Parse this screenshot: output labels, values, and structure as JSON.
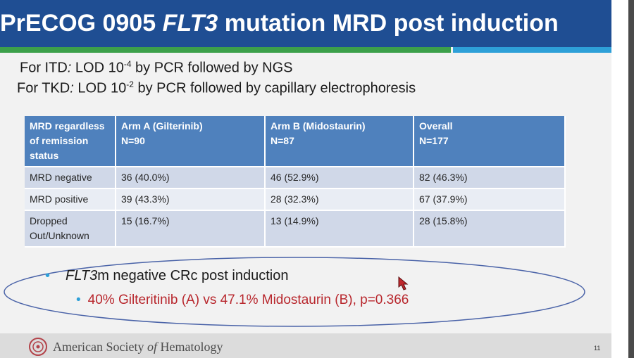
{
  "slide": {
    "title_prefix": "PrECOG 0905",
    "title_italic": "FLT3",
    "title_suffix": "mutation MRD post induction",
    "lod_itd": {
      "label": "For ITD",
      "colon": ":",
      "text": " LOD 10",
      "exponent": "-4",
      "rest": " by PCR  followed by NGS"
    },
    "lod_tkd": {
      "label": "For TKD",
      "colon": ":",
      "text": " LOD 10",
      "exponent": "-2",
      "rest": " by PCR  followed by capillary electrophoresis"
    },
    "table": {
      "headers": [
        {
          "line1": "MRD regardless",
          "line2": "of remission",
          "line3": "status"
        },
        {
          "line1": "Arm A (Gilterinib)",
          "line2": "N=90"
        },
        {
          "line1": "Arm B (Midostaurin)",
          "line2": "N=87"
        },
        {
          "line1": "Overall",
          "line2": "N=177"
        }
      ],
      "rows": [
        {
          "label_line1": "MRD negative",
          "label_line2": "",
          "arm_a": "36 (40.0%)",
          "arm_b": "46 (52.9%)",
          "overall": "82 (46.3%)"
        },
        {
          "label_line1": "MRD positive",
          "label_line2": "",
          "arm_a": "39 (43.3%)",
          "arm_b": "28 (32.3%)",
          "overall": "67 (37.9%)"
        },
        {
          "label_line1": "Dropped",
          "label_line2": "Out/Unknown",
          "arm_a": "15 (16.7%)",
          "arm_b": "13 (14.9%)",
          "overall": "28 (15.8%)"
        }
      ]
    },
    "bullets": {
      "b1_italic": "FLT3",
      "b1_rest": "m negative CRc post induction",
      "b2": "40% Gilteritinib (A)  vs 47.1% Midostaurin (B), p=0.366"
    },
    "footer": {
      "org_part1": "American Society ",
      "org_italic": "of",
      "org_part2": " Hematology",
      "page_number": "11"
    },
    "colors": {
      "title_bar": "#1f4e93",
      "accent_green": "#3ca04a",
      "accent_blue": "#2ea0d8",
      "table_header": "#4f81bd",
      "highlight_red": "#b8272d"
    },
    "icons": [
      "ash-logo-icon",
      "cursor-icon",
      "bullet-dot-icon"
    ]
  }
}
